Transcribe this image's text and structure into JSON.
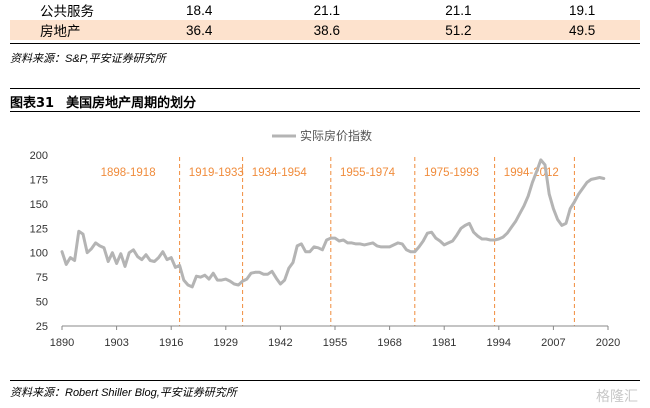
{
  "table": {
    "rows": [
      {
        "label": "公共服务",
        "values": [
          "18.4",
          "21.1",
          "21.1",
          "19.1"
        ],
        "highlight": false
      },
      {
        "label": "房地产",
        "values": [
          "36.4",
          "38.6",
          "51.2",
          "49.5"
        ],
        "highlight": true
      }
    ]
  },
  "source_top": "资料来源：S&P,平安证券研究所",
  "figure": {
    "number": "图表31",
    "title": "美国房地产周期的划分"
  },
  "source_bottom": "资料来源：Robert Shiller Blog,平安证券研究所",
  "watermark": "格隆汇",
  "colors": {
    "series": "#b4b4b4",
    "period": "#f08c3c",
    "highlight_row": "#fde2cd"
  },
  "chart_data": {
    "type": "line",
    "title": "",
    "xlabel": "",
    "ylabel": "",
    "xlim": [
      1890,
      2020
    ],
    "ylim": [
      25,
      200
    ],
    "x_ticks": [
      1890,
      1903,
      1916,
      1929,
      1942,
      1955,
      1968,
      1981,
      1994,
      2007,
      2020
    ],
    "y_ticks": [
      25,
      50,
      75,
      100,
      125,
      150,
      175,
      200
    ],
    "grid": false,
    "legend": "top-center",
    "series": [
      {
        "name": "实际房价指数",
        "x": [
          1890,
          1891,
          1892,
          1893,
          1894,
          1895,
          1896,
          1897,
          1898,
          1899,
          1900,
          1901,
          1902,
          1903,
          1904,
          1905,
          1906,
          1907,
          1908,
          1909,
          1910,
          1911,
          1912,
          1913,
          1914,
          1915,
          1916,
          1917,
          1918,
          1919,
          1920,
          1921,
          1922,
          1923,
          1924,
          1925,
          1926,
          1927,
          1928,
          1929,
          1930,
          1931,
          1932,
          1933,
          1934,
          1935,
          1936,
          1937,
          1938,
          1939,
          1940,
          1941,
          1942,
          1943,
          1944,
          1945,
          1946,
          1947,
          1948,
          1949,
          1950,
          1951,
          1952,
          1953,
          1954,
          1955,
          1956,
          1957,
          1958,
          1959,
          1960,
          1961,
          1962,
          1963,
          1964,
          1965,
          1966,
          1967,
          1968,
          1969,
          1970,
          1971,
          1972,
          1973,
          1974,
          1975,
          1976,
          1977,
          1978,
          1979,
          1980,
          1981,
          1982,
          1983,
          1984,
          1985,
          1986,
          1987,
          1988,
          1989,
          1990,
          1991,
          1992,
          1993,
          1994,
          1995,
          1996,
          1997,
          1998,
          1999,
          2000,
          2001,
          2002,
          2003,
          2004,
          2005,
          2006,
          2007,
          2008,
          2009,
          2010,
          2011,
          2012,
          2013,
          2014,
          2015,
          2016,
          2017,
          2018,
          2019
        ],
        "values": [
          101,
          88,
          95,
          92,
          122,
          119,
          100,
          104,
          110,
          107,
          105,
          91,
          100,
          89,
          99,
          86,
          100,
          103,
          96,
          93,
          98,
          92,
          91,
          95,
          101,
          93,
          95,
          85,
          87,
          72,
          67,
          65,
          76,
          75,
          77,
          73,
          79,
          72,
          72,
          73,
          71,
          68,
          67,
          71,
          73,
          79,
          80,
          80,
          78,
          78,
          81,
          74,
          68,
          72,
          84,
          90,
          107,
          109,
          101,
          101,
          106,
          105,
          103,
          113,
          115,
          115,
          112,
          113,
          110,
          110,
          109,
          109,
          108,
          109,
          110,
          107,
          106,
          106,
          106,
          108,
          110,
          109,
          103,
          101,
          101,
          106,
          112,
          120,
          121,
          115,
          112,
          108,
          110,
          112,
          118,
          125,
          128,
          130,
          121,
          117,
          114,
          114,
          113,
          113,
          114,
          116,
          120,
          126,
          132,
          140,
          148,
          158,
          172,
          183,
          195,
          190,
          160,
          145,
          134,
          128,
          130,
          145,
          152,
          160,
          166,
          172,
          175,
          176,
          177,
          176
        ]
      }
    ],
    "periods": [
      {
        "label": "1898-1918",
        "start": 1898,
        "end": 1918
      },
      {
        "label": "1919-1933",
        "start": 1919,
        "end": 1933
      },
      {
        "label": "1934-1954",
        "start": 1934,
        "end": 1954
      },
      {
        "label": "1955-1974",
        "start": 1955,
        "end": 1974
      },
      {
        "label": "1975-1993",
        "start": 1975,
        "end": 1993
      },
      {
        "label": "1994-2012",
        "start": 1994,
        "end": 2012
      }
    ]
  }
}
